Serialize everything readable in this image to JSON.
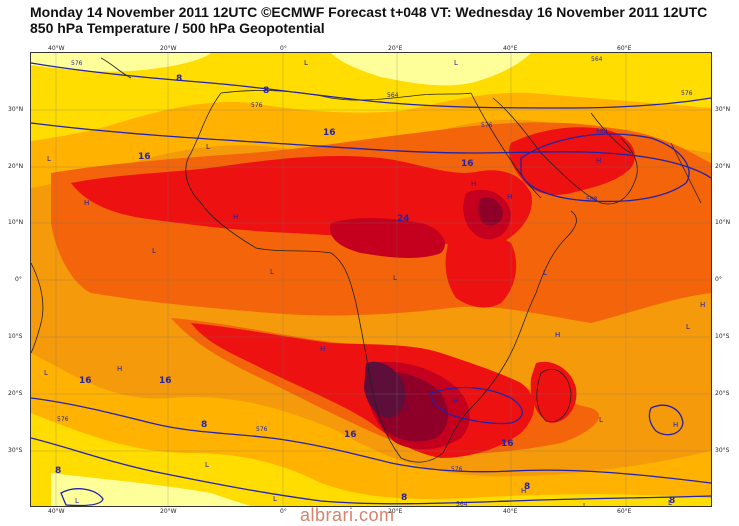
{
  "header": {
    "title_line1": "Monday 14 November 2011 12UTC ©ECMWF Forecast t+048 VT: Wednesday 16 November 2011 12UTC",
    "title_line2": "850 hPa Temperature / 500 hPa Geopotential"
  },
  "axes": {
    "top_lon": [
      "40°W",
      "20°W",
      "0°",
      "20°E",
      "40°E",
      "60°E"
    ],
    "bottom_lon": [
      "40°W",
      "20°W",
      "0°",
      "20°E",
      "40°E",
      "60°E"
    ],
    "left_lat": [
      "30°N",
      "20°N",
      "10°N",
      "0°",
      "10°S",
      "20°S",
      "30°S"
    ],
    "right_lat": [
      "30°N",
      "20°N",
      "10°N",
      "0°",
      "10°S",
      "20°S",
      "30°S"
    ]
  },
  "contour_labels": {
    "temperature": [
      "8",
      "8",
      "16",
      "16",
      "16",
      "16",
      "16",
      "16",
      "24",
      "8",
      "8",
      "16",
      "8",
      "8",
      "8"
    ],
    "geopotential": [
      "576",
      "576",
      "564",
      "564",
      "576",
      "588",
      "576",
      "576",
      "576",
      "588",
      "576",
      "564"
    ]
  },
  "pressure_centers": {
    "highs": [
      "H",
      "H",
      "H",
      "H",
      "H",
      "H",
      "H",
      "H",
      "H",
      "H",
      "H",
      "H",
      "H"
    ],
    "lows": [
      "L",
      "L",
      "L",
      "L",
      "L",
      "L",
      "L",
      "L",
      "L",
      "L",
      "L",
      "L",
      "L",
      "L",
      "L",
      "L"
    ]
  },
  "colors": {
    "pale_yellow": "#ffff9a",
    "yellow": "#ffdd00",
    "light_orange": "#ffb300",
    "orange": "#f59a0a",
    "dark_orange": "#f4640a",
    "red": "#ee1111",
    "crimson": "#c4001e",
    "dark_red": "#8e0028",
    "maroon": "#5e0e3b",
    "contour_blue": "#2222aa",
    "coast": "#222222"
  },
  "watermark": "albrari.com"
}
